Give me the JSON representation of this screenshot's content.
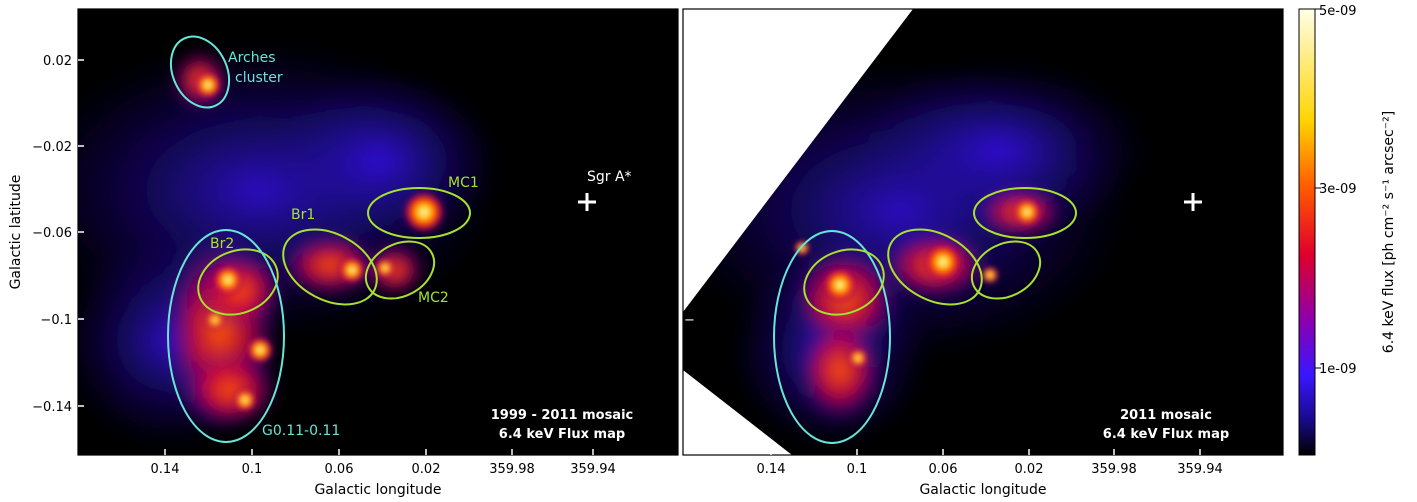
{
  "chart_data": [
    {
      "type": "heatmap",
      "caption": [
        "1999 - 2011 mosaic",
        "6.4 keV Flux map"
      ],
      "xlabel": "Galactic longitude",
      "ylabel": "Galactic latitude",
      "x_ticks": [
        "0.14",
        "0.1",
        "0.06",
        "0.02",
        "359.98",
        "359.94"
      ],
      "y_ticks": [
        "0.02",
        "−0.02",
        "−0.06",
        "−0.1",
        "−0.14"
      ],
      "regions": [
        {
          "label": "Arches cluster",
          "lines": [
            "Arches",
            "cluster"
          ],
          "color": "#66e6d6"
        },
        {
          "label": "MC1",
          "lines": [
            "MC1"
          ],
          "color": "#a6e22e"
        },
        {
          "label": "Br1",
          "lines": [
            "Br1"
          ],
          "color": "#a6e22e"
        },
        {
          "label": "Br2",
          "lines": [
            "Br2"
          ],
          "color": "#a6e22e"
        },
        {
          "label": "MC2",
          "lines": [
            "MC2"
          ],
          "color": "#a6e22e"
        },
        {
          "label": "G0.11-0.11",
          "lines": [
            "G0.11-0.11"
          ],
          "color": "#66e6d6"
        }
      ],
      "marker": {
        "label": "Sgr A*",
        "symbol": "+"
      }
    },
    {
      "type": "heatmap",
      "caption": [
        "2011 mosaic",
        "6.4 keV Flux map"
      ],
      "xlabel": "Galactic longitude",
      "x_ticks": [
        "0.14",
        "0.1",
        "0.06",
        "0.02",
        "359.98",
        "359.94"
      ],
      "y_tick_marks": [
        "−"
      ]
    }
  ],
  "colorbar": {
    "label": "6.4 keV flux [ph cm⁻² s⁻¹ arcsec⁻²]",
    "ticks": [
      "5e-09",
      "3e-09",
      "1e-09"
    ],
    "range": [
      0,
      5e-09
    ],
    "colormap": [
      "#000000",
      "#1a0a8c",
      "#3a16ff",
      "#8a00b0",
      "#e0002a",
      "#ff5a00",
      "#ffd400",
      "#ffffe8"
    ]
  },
  "colors": {
    "background": "#000000",
    "arches": "#66e6d6",
    "green": "#a6e22e"
  }
}
